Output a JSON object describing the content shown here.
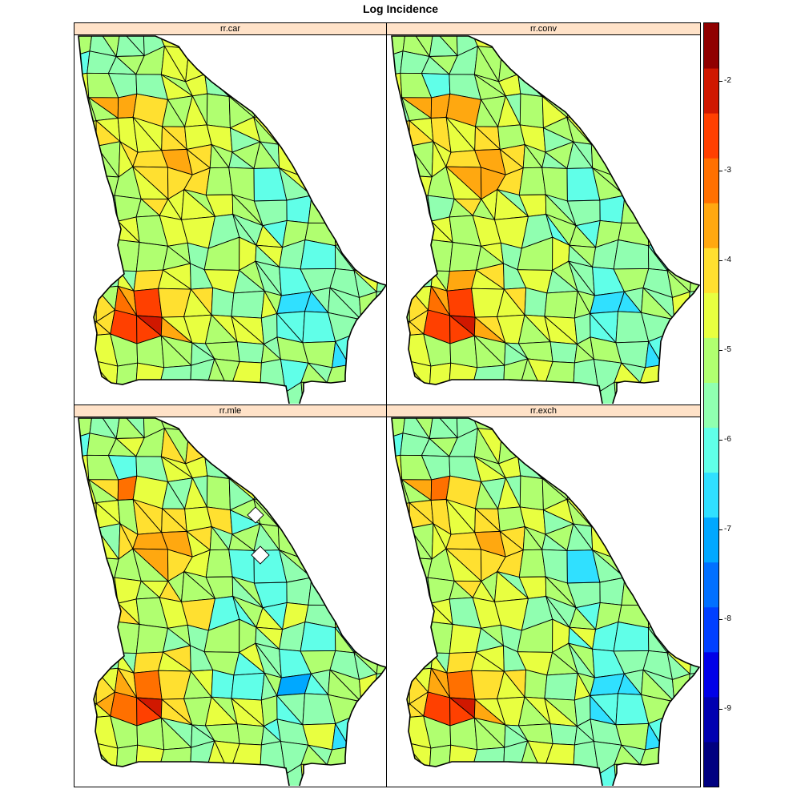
{
  "title": "Log Incidence",
  "panels": [
    {
      "label": "rr.car",
      "variant": "car"
    },
    {
      "label": "rr.conv",
      "variant": "conv"
    },
    {
      "label": "rr.mle",
      "variant": "mle"
    },
    {
      "label": "rr.exch",
      "variant": "exch"
    }
  ],
  "colorkey": {
    "colors": [
      "#000080",
      "#0000B0",
      "#0000E8",
      "#0040FF",
      "#0070FF",
      "#00A8FF",
      "#30E0FF",
      "#60FFE8",
      "#90FFB0",
      "#B0FF70",
      "#E8FF40",
      "#FFE030",
      "#FFA810",
      "#FF7000",
      "#FF4000",
      "#D01800",
      "#900000"
    ],
    "range": [
      -9.87,
      -1.35
    ],
    "ticks": [
      -9,
      -8,
      -7,
      -6,
      -5,
      -4,
      -3,
      -2
    ],
    "tick_labels": [
      "-9",
      "-8",
      "-7",
      "-6",
      "-5",
      "-4",
      "-3",
      "-2"
    ]
  },
  "map_data": {
    "region": "Georgia counties",
    "fill_variable": "log relative risk / incidence"
  }
}
